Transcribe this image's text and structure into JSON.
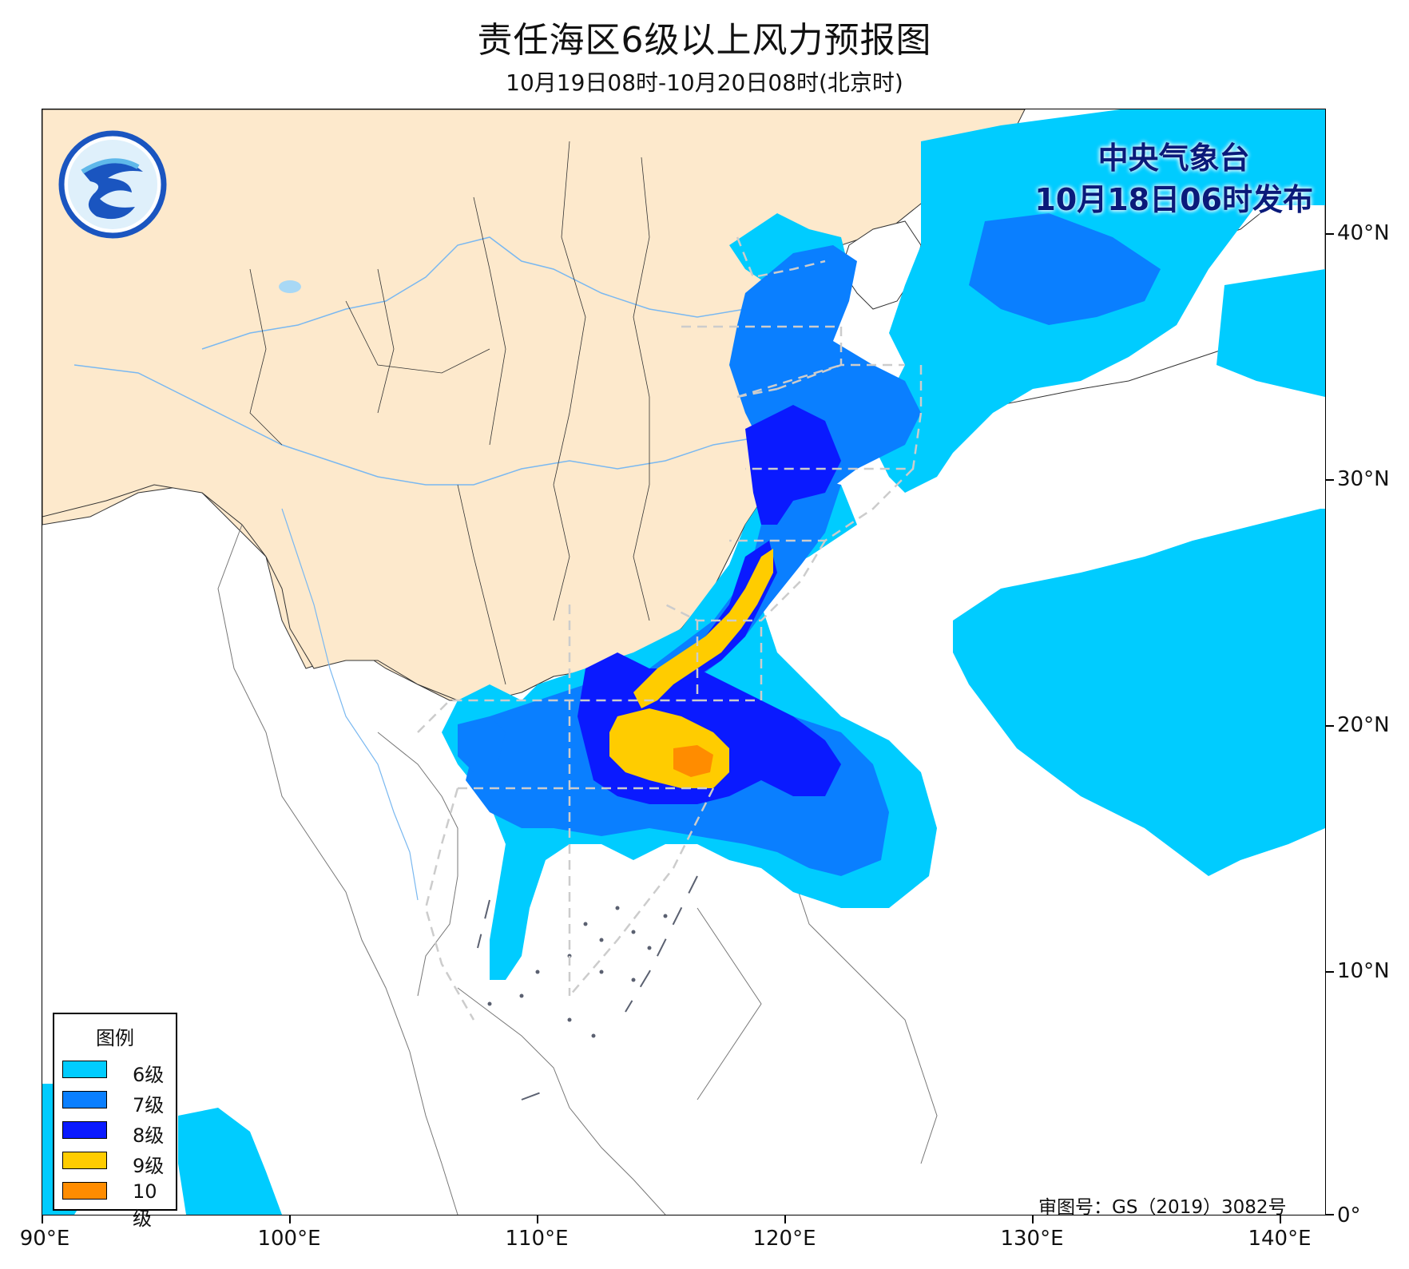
{
  "title": "责任海区6级以上风力预报图",
  "subtitle": "10月19日08时-10月20日08时(北京时)",
  "issuer": {
    "line1": "中央气象台",
    "line2": "10月18日06时发布"
  },
  "approval": "审图号：GS（2019）3082号",
  "axes": {
    "x_ticks": [
      "90°E",
      "100°E",
      "110°E",
      "120°E",
      "130°E",
      "140°E"
    ],
    "y_ticks": [
      "40°N",
      "30°N",
      "20°N",
      "10°N",
      "0°"
    ]
  },
  "legend": {
    "title": "图例",
    "items": [
      {
        "label": "6级",
        "color": "#00ccff"
      },
      {
        "label": "7级",
        "color": "#0a7fff"
      },
      {
        "label": "8级",
        "color": "#0a1aff"
      },
      {
        "label": "9级",
        "color": "#ffcc00"
      },
      {
        "label": "10级",
        "color": "#ff8c00"
      }
    ]
  },
  "colors": {
    "land": "#fde9cc",
    "river": "#7ab8f0",
    "lake": "#a8d8f5",
    "zone_lines": "#cccccc",
    "border": "#333333",
    "islands": "#5a6070"
  }
}
